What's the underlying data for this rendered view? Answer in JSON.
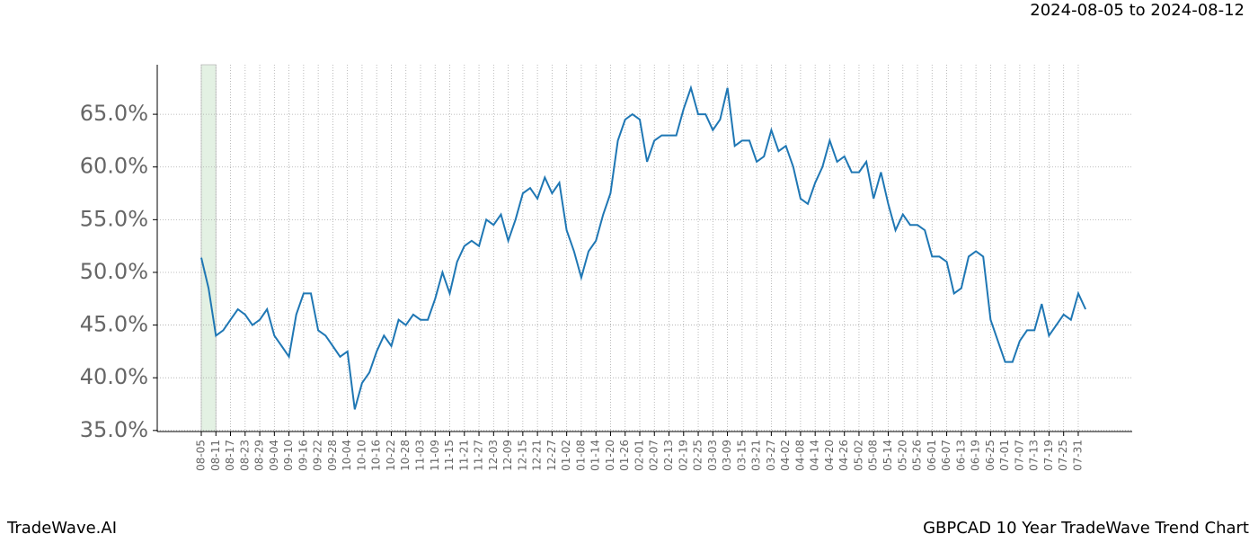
{
  "header": {
    "date_range": "2024-08-05 to 2024-08-12"
  },
  "footer": {
    "brand": "TradeWave.AI",
    "caption": "GBPCAD 10 Year TradeWave Trend Chart"
  },
  "chart_data": {
    "type": "line",
    "categories": [
      "08-05",
      null,
      "08-11",
      null,
      "08-17",
      null,
      "08-23",
      null,
      "08-29",
      null,
      "09-04",
      null,
      "09-10",
      null,
      "09-16",
      null,
      "09-22",
      null,
      "09-28",
      null,
      "10-04",
      null,
      "10-10",
      null,
      "10-16",
      null,
      "10-22",
      null,
      "10-28",
      null,
      "11-03",
      null,
      "11-09",
      null,
      "11-15",
      null,
      "11-21",
      null,
      "11-27",
      null,
      "12-03",
      null,
      "12-09",
      null,
      "12-15",
      null,
      "12-21",
      null,
      "12-27",
      null,
      "01-02",
      null,
      "01-08",
      null,
      "01-14",
      null,
      "01-20",
      null,
      "01-26",
      null,
      "02-01",
      null,
      "02-07",
      null,
      "02-13",
      null,
      "02-19",
      null,
      "02-25",
      null,
      "03-03",
      null,
      "03-09",
      null,
      "03-15",
      null,
      "03-21",
      null,
      "03-27",
      null,
      "04-02",
      null,
      "04-08",
      null,
      "04-14",
      null,
      "04-20",
      null,
      "04-26",
      null,
      "05-02",
      null,
      "05-08",
      null,
      "05-14",
      null,
      "05-20",
      null,
      "05-26",
      null,
      "06-01",
      null,
      "06-07",
      null,
      "06-13",
      null,
      "06-19",
      null,
      "06-25",
      null,
      "07-01",
      null,
      "07-07",
      null,
      "07-13",
      null,
      "07-19",
      null,
      "07-25",
      null,
      "07-31",
      null
    ],
    "series": [
      {
        "color": "#1f77b4",
        "values": [
          51.4,
          48.5,
          44,
          44.5,
          45.5,
          46.5,
          46,
          45,
          45.5,
          46.5,
          44,
          43,
          42,
          46,
          48,
          48,
          44.5,
          44,
          43,
          42,
          42.5,
          37,
          39.5,
          40.5,
          42.5,
          44,
          43,
          45.5,
          45,
          46,
          45.5,
          45.5,
          47.5,
          50,
          48,
          51,
          52.5,
          53,
          52.5,
          55,
          54.5,
          55.5,
          53,
          55,
          57.5,
          58,
          57,
          59,
          57.5,
          58.5,
          54,
          52,
          49.5,
          52,
          53,
          55.5,
          57.5,
          62.5,
          64.5,
          65,
          64.5,
          60.5,
          62.5,
          63,
          63,
          63,
          65.5,
          67.5,
          65,
          65,
          63.5,
          64.5,
          67.5,
          62,
          62.5,
          62.5,
          60.5,
          61,
          63.5,
          61.5,
          62,
          60,
          57,
          56.5,
          58.5,
          60,
          62.5,
          60.5,
          61,
          59.5,
          59.5,
          60.5,
          57,
          59.5,
          56.5,
          54,
          55.5,
          54.5,
          54.5,
          54,
          51.5,
          51.5,
          51,
          48,
          48.5,
          51.5,
          52,
          51.5,
          45.5,
          43.5,
          41.5,
          41.5,
          43.5,
          44.5,
          44.5,
          47,
          44,
          45,
          46,
          45.5,
          48,
          46.5
        ]
      }
    ],
    "ylim": [
      34.9,
      69.7
    ],
    "yticks": [
      {
        "value": 35,
        "label": "35.0%"
      },
      {
        "value": 40,
        "label": "40.0%"
      },
      {
        "value": 45,
        "label": "45.0%"
      },
      {
        "value": 50,
        "label": "50.0%"
      },
      {
        "value": 55,
        "label": "55.0%"
      },
      {
        "value": 60,
        "label": "60.0%"
      },
      {
        "value": 65,
        "label": "65.0%"
      }
    ],
    "grid": true,
    "highlight": {
      "from": 0,
      "to": 2,
      "color": "#e3f1e3"
    }
  }
}
